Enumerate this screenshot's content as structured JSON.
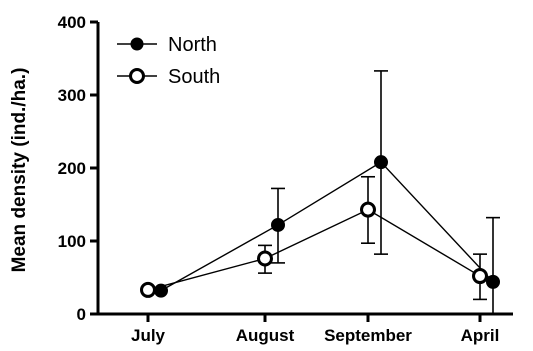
{
  "chart_data": {
    "type": "line",
    "categories": [
      "July",
      "August",
      "September",
      "April"
    ],
    "ylabel": "Mean density (ind./ha.)",
    "xlabel": "",
    "title": "",
    "ylim": [
      0,
      400
    ],
    "yticks": [
      0,
      100,
      200,
      300,
      400
    ],
    "legend_position": "top-left",
    "series": [
      {
        "name": "North",
        "marker": "filled-circle",
        "values": [
          32,
          122,
          208,
          44
        ],
        "error_low": [
          32,
          70,
          82,
          0
        ],
        "error_high": [
          32,
          172,
          333,
          132
        ]
      },
      {
        "name": "South",
        "marker": "open-circle",
        "values": [
          33,
          76,
          143,
          52
        ],
        "error_low": [
          33,
          56,
          97,
          20
        ],
        "error_high": [
          33,
          94,
          188,
          82
        ]
      }
    ],
    "yticklabels": [
      "0",
      "100",
      "200",
      "300",
      "400"
    ]
  }
}
